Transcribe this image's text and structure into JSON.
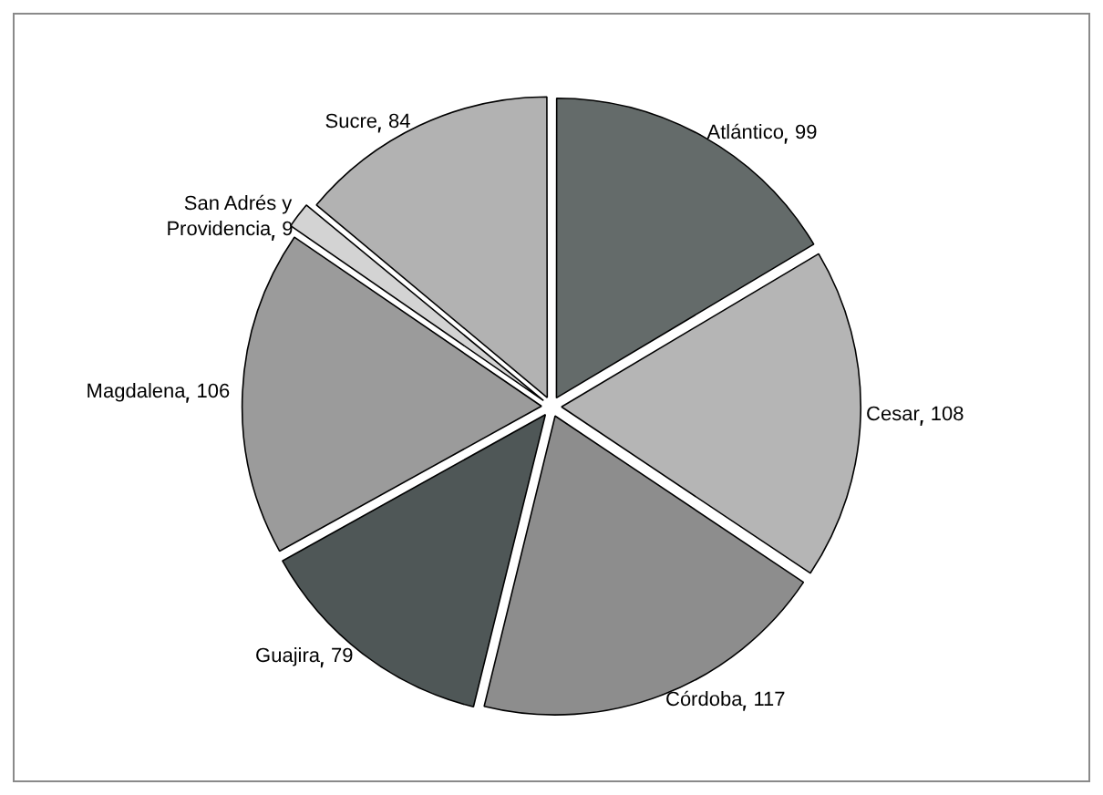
{
  "chart_data": {
    "type": "pie",
    "categories": [
      "Atlántico",
      "Cesar",
      "Córdoba",
      "Guajira",
      "Magdalena",
      "San Adrés y Providencia",
      "Sucre"
    ],
    "values": [
      99,
      108,
      117,
      79,
      106,
      9,
      84
    ],
    "data_labels": true,
    "colors": [
      "#646b6a",
      "#b5b5b5",
      "#8d8d8d",
      "#4f5757",
      "#9b9b9b",
      "#d3d3d3",
      "#b2b2b2"
    ],
    "legend": false
  }
}
